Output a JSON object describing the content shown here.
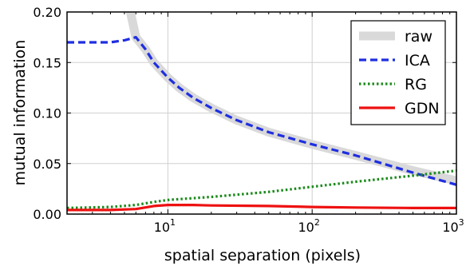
{
  "chart_data": {
    "type": "line",
    "xlabel": "spatial separation (pixels)",
    "ylabel": "mutual information",
    "xscale": "log",
    "xlim": [
      2,
      1000
    ],
    "ylim": [
      0,
      0.2
    ],
    "grid": true,
    "legend_position": "top-right",
    "yticks": [
      "0.00",
      "0.05",
      "0.10",
      "0.15",
      "0.20"
    ],
    "xticks": [
      {
        "value": 10,
        "base": "10",
        "exp": "1"
      },
      {
        "value": 100,
        "base": "10",
        "exp": "2"
      },
      {
        "value": 1000,
        "base": "10",
        "exp": "3"
      }
    ],
    "series": [
      {
        "name": "raw",
        "color": "#d9d9d9",
        "style": "solid-thick",
        "x": [
          5.4,
          6,
          7,
          8,
          10,
          12,
          15,
          20,
          30,
          50,
          100,
          200,
          500,
          1000
        ],
        "y": [
          0.205,
          0.175,
          0.163,
          0.15,
          0.135,
          0.125,
          0.115,
          0.105,
          0.093,
          0.081,
          0.069,
          0.058,
          0.043,
          0.033
        ]
      },
      {
        "name": "ICA",
        "color": "#1f2ee0",
        "style": "dashed",
        "x": [
          2,
          3,
          4,
          5,
          6,
          7,
          8,
          10,
          12,
          15,
          20,
          30,
          50,
          100,
          200,
          500,
          1000
        ],
        "y": [
          0.17,
          0.17,
          0.17,
          0.172,
          0.175,
          0.163,
          0.15,
          0.135,
          0.125,
          0.115,
          0.105,
          0.093,
          0.081,
          0.069,
          0.058,
          0.041,
          0.029
        ]
      },
      {
        "name": "RG",
        "color": "#1a8a1a",
        "style": "dotted",
        "x": [
          2,
          4,
          6,
          8,
          10,
          20,
          50,
          100,
          200,
          500,
          1000
        ],
        "y": [
          0.006,
          0.007,
          0.009,
          0.012,
          0.014,
          0.017,
          0.022,
          0.027,
          0.032,
          0.038,
          0.043
        ]
      },
      {
        "name": "GDN",
        "color": "#ee1111",
        "style": "solid",
        "x": [
          2,
          4,
          6,
          8,
          10,
          15,
          20,
          50,
          100,
          200,
          500,
          1000
        ],
        "y": [
          0.004,
          0.004,
          0.005,
          0.008,
          0.009,
          0.009,
          0.0085,
          0.008,
          0.007,
          0.0065,
          0.006,
          0.006
        ]
      }
    ]
  }
}
